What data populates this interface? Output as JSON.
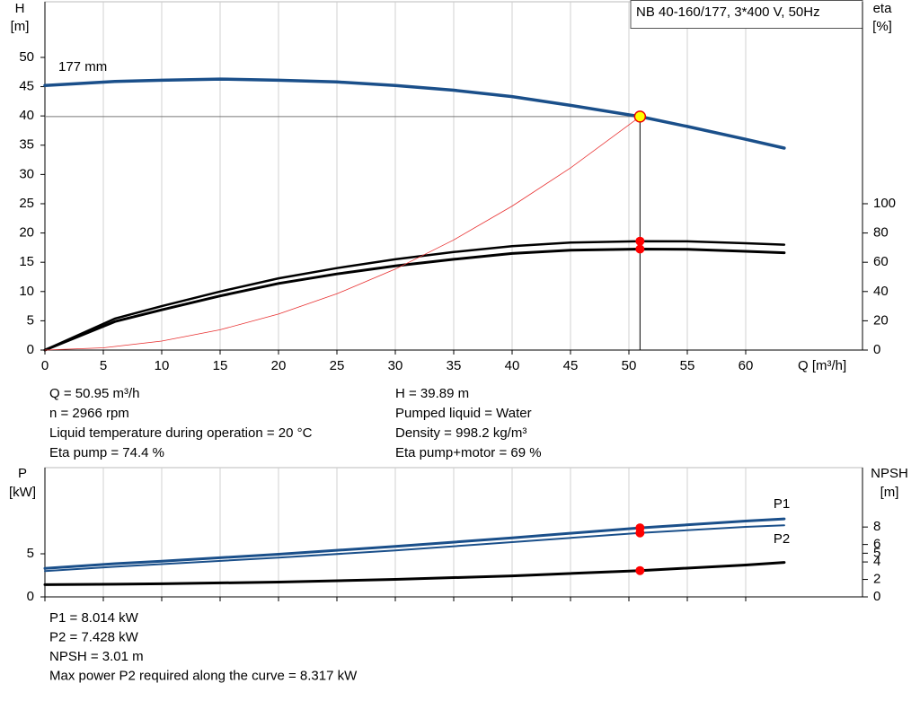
{
  "chart_data": [
    {
      "type": "line",
      "title": "NB 40-160/177, 3*400 V, 50Hz",
      "y_label": [
        "H",
        "[m]"
      ],
      "y2_label": [
        "eta",
        "[%]"
      ],
      "x_label": "Q [m³/h]",
      "xlim": [
        0,
        70
      ],
      "xticks": [
        0,
        5,
        10,
        15,
        20,
        25,
        30,
        35,
        40,
        45,
        50,
        55,
        60
      ],
      "ylim": [
        0,
        59.5
      ],
      "yticks": [
        0,
        5,
        10,
        15,
        20,
        25,
        30,
        35,
        40,
        45,
        50
      ],
      "y2lim": [
        0,
        238
      ],
      "y2ticks": [
        0,
        20,
        40,
        60,
        80,
        100
      ],
      "grid": true,
      "operating_point": {
        "x": 50.95,
        "y": 39.89
      },
      "series": [
        {
          "name": "177 mm",
          "color": "#1a4f8a",
          "line_width": 3.5,
          "x": [
            0,
            6,
            10,
            15,
            20,
            25,
            30,
            35,
            40,
            45,
            50.95,
            55,
            60,
            63.3
          ],
          "values": [
            45.2,
            45.9,
            46.1,
            46.3,
            46.1,
            45.8,
            45.2,
            44.4,
            43.3,
            41.8,
            39.89,
            38.2,
            36.0,
            34.5
          ]
        },
        {
          "axis": "y2",
          "color": "#000000",
          "line_width": 2.5,
          "marker": true,
          "x": [
            0,
            6,
            10,
            15,
            20,
            25,
            30,
            35,
            40,
            45,
            50.95,
            55,
            60,
            63.3
          ],
          "values": [
            0,
            21.5,
            30,
            40,
            49,
            56,
            62,
            67,
            71,
            73.5,
            74.4,
            74.3,
            73,
            72
          ]
        },
        {
          "axis": "y2",
          "color": "#000000",
          "line_width": 3,
          "marker": true,
          "x": [
            0,
            6,
            10,
            15,
            20,
            25,
            30,
            35,
            40,
            45,
            50.95,
            55,
            60,
            63.3
          ],
          "values": [
            0,
            19.5,
            27.5,
            37,
            45.5,
            52,
            57.5,
            62,
            66,
            68.2,
            69,
            68.8,
            67.5,
            66.5
          ]
        },
        {
          "color": "#e83030",
          "line_width": 0.8,
          "x": [
            0,
            5,
            10,
            15,
            20,
            25,
            30,
            35,
            40,
            45,
            50.95
          ],
          "values": [
            0,
            0.38,
            1.54,
            3.46,
            6.15,
            9.61,
            13.83,
            18.82,
            24.59,
            31.12,
            39.89
          ]
        }
      ],
      "annotations": [
        "Q = 50.95 m³/h",
        "n = 2966 rpm",
        "Liquid temperature during operation = 20 °C",
        "Eta pump = 74.4 %",
        "H = 39.89 m",
        "Pumped liquid = Water",
        "Density = 998.2 kg/m³",
        "Eta pump+motor = 69 %"
      ]
    },
    {
      "type": "line",
      "y_label": [
        "P",
        "[kW]"
      ],
      "y2_label": [
        "NPSH",
        "[m]"
      ],
      "xlim": [
        0,
        70
      ],
      "xticks": [
        0,
        5,
        10,
        15,
        20,
        25,
        30,
        35,
        40,
        45,
        50,
        55,
        60
      ],
      "ylim": [
        0,
        15
      ],
      "yticks": [
        0,
        5
      ],
      "y2lim": [
        0,
        14.8
      ],
      "y2ticks": [
        0,
        2,
        4,
        5,
        6,
        8
      ],
      "grid": true,
      "series": [
        {
          "name": "P1",
          "color": "#1a4f8a",
          "line_width": 3,
          "marker": true,
          "x": [
            0,
            6,
            10,
            20,
            30,
            40,
            50.95,
            60,
            63.3
          ],
          "values": [
            3.3,
            3.85,
            4.15,
            4.95,
            5.85,
            6.85,
            8.014,
            8.8,
            9.05
          ]
        },
        {
          "name": "P2",
          "color": "#1a4f8a",
          "line_width": 2,
          "marker": true,
          "x": [
            0,
            6,
            10,
            20,
            30,
            40,
            50.95,
            60,
            63.3
          ],
          "values": [
            3.0,
            3.5,
            3.8,
            4.55,
            5.4,
            6.35,
            7.428,
            8.12,
            8.317
          ]
        },
        {
          "axis": "y2",
          "color": "#000000",
          "line_width": 3,
          "marker": true,
          "x": [
            0,
            6,
            10,
            20,
            30,
            40,
            50.95,
            60,
            63.3
          ],
          "values": [
            1.4,
            1.45,
            1.5,
            1.7,
            2.0,
            2.4,
            3.01,
            3.65,
            3.95
          ]
        }
      ],
      "annotations": [
        "P1 = 8.014 kW",
        "P2 = 7.428 kW",
        "NPSH = 3.01 m",
        "Max power P2 required along the curve = 8.317 kW"
      ]
    }
  ]
}
